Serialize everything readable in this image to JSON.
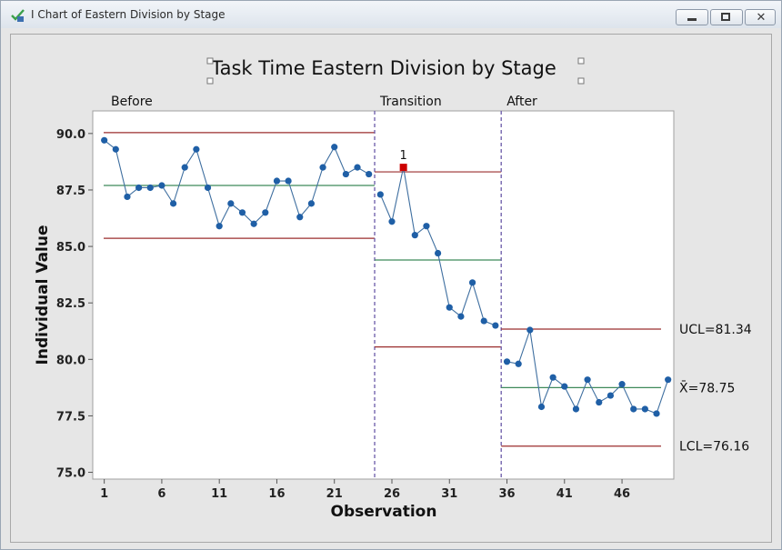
{
  "window": {
    "title": "I Chart of Eastern Division by Stage",
    "icon": "checkmark-chart-icon",
    "controls": [
      "minimize-icon",
      "maximize-icon",
      "close-icon"
    ]
  },
  "chart_data": {
    "type": "line",
    "title": "Task Time Eastern Division by Stage",
    "xlabel": "Observation",
    "ylabel": "Individual Value",
    "xlim": [
      0,
      50.5
    ],
    "ylim": [
      74.7,
      91.0
    ],
    "x_ticks": [
      1,
      6,
      11,
      16,
      21,
      26,
      31,
      36,
      41,
      46
    ],
    "y_ticks": [
      75.0,
      77.5,
      80.0,
      82.5,
      85.0,
      87.5,
      90.0
    ],
    "y_tick_labels": [
      "75.0",
      "77.5",
      "80.0",
      "82.5",
      "85.0",
      "87.5",
      "90.0"
    ],
    "colors": {
      "points": "#1f5fa6",
      "line": "#3f6fa0",
      "center": "#3f8a5a",
      "limits": "#9b2d2d",
      "flag": "#cc0000",
      "divider": "#6a5aa8"
    },
    "stages": [
      {
        "name": "Before",
        "start": 1,
        "end": 24,
        "center": 87.7,
        "ucl": 90.04,
        "lcl": 85.36
      },
      {
        "name": "Transition",
        "start": 25,
        "end": 35,
        "center": 84.4,
        "ucl": 88.3,
        "lcl": 80.55
      },
      {
        "name": "After",
        "start": 36,
        "end": 50,
        "center": 78.75,
        "ucl": 81.34,
        "lcl": 76.16,
        "labels": {
          "ucl": "UCL=81.34",
          "center": "X̄=78.75",
          "lcl": "LCL=76.16"
        }
      }
    ],
    "series": [
      {
        "x": [
          1,
          2,
          3,
          4,
          5,
          6,
          7,
          8,
          9,
          10,
          11,
          12,
          13,
          14,
          15,
          16,
          17,
          18,
          19,
          20,
          21,
          22,
          23,
          24,
          25,
          26,
          27,
          28,
          29,
          30,
          31,
          32,
          33,
          34,
          35,
          36,
          37,
          38,
          39,
          40,
          41,
          42,
          43,
          44,
          45,
          46,
          47,
          48,
          49,
          50
        ],
        "values": [
          89.7,
          89.3,
          87.2,
          87.6,
          87.6,
          87.7,
          86.9,
          88.5,
          89.3,
          87.6,
          85.9,
          86.9,
          86.5,
          86.0,
          86.5,
          87.9,
          87.9,
          86.3,
          86.9,
          88.5,
          89.4,
          88.2,
          88.5,
          88.2,
          87.3,
          86.1,
          88.5,
          85.5,
          85.9,
          84.7,
          82.3,
          81.9,
          83.4,
          81.7,
          81.5,
          79.9,
          79.8,
          81.3,
          77.9,
          79.2,
          78.8,
          77.8,
          79.1,
          78.1,
          78.4,
          78.9,
          77.8,
          77.8,
          77.6,
          79.1
        ]
      }
    ],
    "flagged": [
      {
        "x": 27,
        "value": 88.5,
        "label": "1"
      }
    ]
  }
}
